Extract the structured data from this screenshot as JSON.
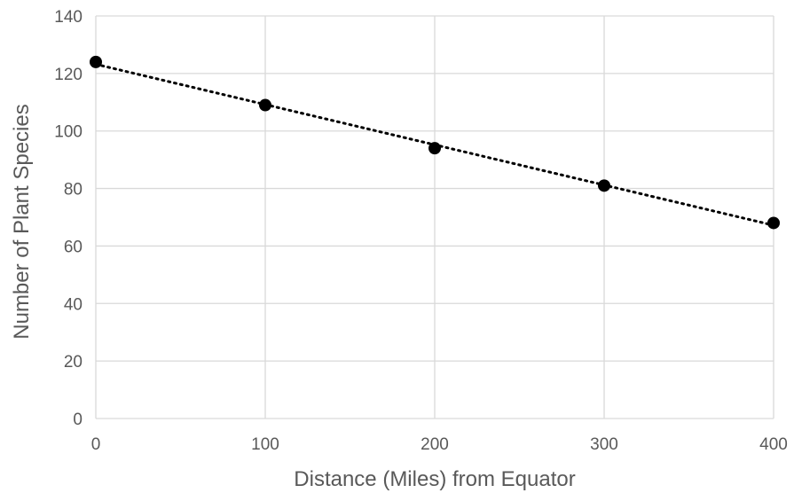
{
  "chart_data": {
    "type": "scatter",
    "title": "",
    "xlabel": "Distance (Miles) from Equator",
    "ylabel": "Number of Plant Species",
    "xlim": [
      0,
      400
    ],
    "ylim": [
      0,
      140
    ],
    "x_ticks": [
      0,
      100,
      200,
      300,
      400
    ],
    "y_ticks": [
      0,
      20,
      40,
      60,
      80,
      100,
      120,
      140
    ],
    "grid": true,
    "legend": "none",
    "series": [
      {
        "x": [
          0,
          100,
          200,
          300,
          400
        ],
        "y": [
          124,
          109,
          94,
          81,
          68
        ],
        "marker_color": "#000000"
      }
    ],
    "trendline": {
      "type": "linear",
      "style": "dotted",
      "color": "#000000"
    },
    "colors": {
      "grid": "#d9d9d9",
      "text": "#595959"
    }
  }
}
